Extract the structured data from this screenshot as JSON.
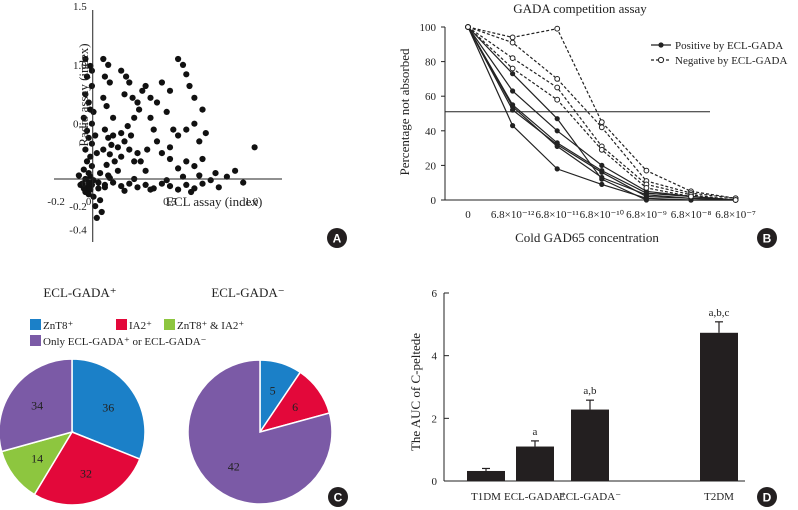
{
  "colors": {
    "blue": "#1b80c8",
    "red": "#e3083a",
    "green": "#8dc63f",
    "purple": "#7b5aa6",
    "dark": "#231f20"
  },
  "chart_data": [
    {
      "panel": "A",
      "type": "scatter",
      "xlabel": "ECL assay (index)",
      "ylabel": "Radio assay (index)",
      "xlim": [
        -0.25,
        1.25
      ],
      "ylim": [
        -0.42,
        1.5
      ],
      "x_ticks": [
        "-0.2",
        "0",
        "0.5",
        "1.0"
      ],
      "x_tick_values": [
        -0.2,
        0,
        0.5,
        1.0
      ],
      "y_ticks": [
        "1.5",
        "1.0",
        "0.5",
        "0",
        "-0.2",
        "-0.4"
      ],
      "y_tick_values": [
        1.5,
        1.0,
        0.5,
        0,
        -0.2,
        -0.4
      ],
      "cutoff_x": 0.025,
      "cutoff_y": 0.03,
      "points": [
        [
          -0.02,
          1.05
        ],
        [
          0.01,
          0.99
        ],
        [
          -0.01,
          0.9
        ],
        [
          0.02,
          0.82
        ],
        [
          -0.02,
          0.75
        ],
        [
          0.0,
          0.68
        ],
        [
          0.01,
          0.62
        ],
        [
          -0.03,
          0.55
        ],
        [
          0.02,
          0.5
        ],
        [
          -0.01,
          0.44
        ],
        [
          0.0,
          0.38
        ],
        [
          0.02,
          0.33
        ],
        [
          -0.02,
          0.28
        ],
        [
          0.01,
          0.22
        ],
        [
          -0.01,
          0.18
        ],
        [
          0.02,
          0.14
        ],
        [
          -0.03,
          0.11
        ],
        [
          0.0,
          0.08
        ],
        [
          0.01,
          0.05
        ],
        [
          -0.02,
          0.03
        ],
        [
          0.03,
          0.02
        ],
        [
          0.0,
          0.0
        ],
        [
          -0.04,
          -0.01
        ],
        [
          0.02,
          -0.02
        ],
        [
          -0.01,
          -0.04
        ],
        [
          0.01,
          -0.06
        ],
        [
          -0.02,
          -0.08
        ],
        [
          0.0,
          -0.1
        ],
        [
          0.03,
          -0.12
        ],
        [
          -0.03,
          -0.05
        ],
        [
          0.06,
          -0.05
        ],
        [
          0.07,
          -0.15
        ],
        [
          0.08,
          -0.25
        ],
        [
          0.05,
          -0.3
        ],
        [
          0.04,
          -0.2
        ],
        [
          0.06,
          0.0
        ],
        [
          0.07,
          0.08
        ],
        [
          -0.06,
          0.06
        ],
        [
          -0.05,
          -0.02
        ],
        [
          0.1,
          -0.04
        ],
        [
          0.03,
          0.6
        ],
        [
          0.02,
          0.95
        ],
        [
          0.04,
          0.4
        ],
        [
          0.05,
          0.25
        ],
        [
          0.09,
          1.05
        ],
        [
          0.12,
          1.0
        ],
        [
          0.1,
          0.9
        ],
        [
          0.13,
          0.85
        ],
        [
          0.09,
          0.72
        ],
        [
          0.11,
          0.65
        ],
        [
          0.15,
          0.55
        ],
        [
          0.1,
          0.45
        ],
        [
          0.12,
          0.38
        ],
        [
          0.14,
          0.32
        ],
        [
          0.09,
          0.28
        ],
        [
          0.13,
          0.24
        ],
        [
          0.16,
          0.18
        ],
        [
          0.11,
          0.15
        ],
        [
          0.18,
          0.1
        ],
        [
          0.12,
          0.06
        ],
        [
          0.2,
          0.95
        ],
        [
          0.23,
          0.9
        ],
        [
          0.25,
          0.85
        ],
        [
          0.22,
          0.75
        ],
        [
          0.27,
          0.72
        ],
        [
          0.3,
          0.68
        ],
        [
          0.33,
          0.78
        ],
        [
          0.35,
          0.82
        ],
        [
          0.31,
          0.62
        ],
        [
          0.28,
          0.55
        ],
        [
          0.24,
          0.48
        ],
        [
          0.2,
          0.42
        ],
        [
          0.26,
          0.4
        ],
        [
          0.22,
          0.35
        ],
        [
          0.18,
          0.3
        ],
        [
          0.25,
          0.28
        ],
        [
          0.3,
          0.25
        ],
        [
          0.2,
          0.22
        ],
        [
          0.28,
          0.18
        ],
        [
          0.15,
          0.4
        ],
        [
          0.38,
          0.72
        ],
        [
          0.42,
          0.68
        ],
        [
          0.45,
          0.85
        ],
        [
          0.5,
          0.78
        ],
        [
          0.55,
          1.05
        ],
        [
          0.58,
          1.0
        ],
        [
          0.6,
          0.92
        ],
        [
          0.62,
          0.82
        ],
        [
          0.65,
          0.72
        ],
        [
          0.48,
          0.6
        ],
        [
          0.52,
          0.45
        ],
        [
          0.55,
          0.4
        ],
        [
          0.6,
          0.45
        ],
        [
          0.65,
          0.5
        ],
        [
          0.7,
          0.62
        ],
        [
          0.4,
          0.45
        ],
        [
          0.42,
          0.35
        ],
        [
          0.36,
          0.28
        ],
        [
          0.45,
          0.25
        ],
        [
          0.5,
          0.2
        ],
        [
          0.55,
          0.12
        ],
        [
          0.6,
          0.18
        ],
        [
          0.65,
          0.14
        ],
        [
          0.7,
          0.2
        ],
        [
          0.35,
          0.1
        ],
        [
          0.32,
          0.18
        ],
        [
          0.68,
          0.35
        ],
        [
          0.72,
          0.42
        ],
        [
          0.5,
          0.3
        ],
        [
          0.38,
          0.55
        ],
        [
          0.1,
          -0.02
        ],
        [
          0.15,
          0.0
        ],
        [
          0.2,
          -0.03
        ],
        [
          0.25,
          -0.01
        ],
        [
          0.3,
          -0.04
        ],
        [
          0.35,
          -0.02
        ],
        [
          0.4,
          -0.05
        ],
        [
          0.45,
          -0.01
        ],
        [
          0.5,
          -0.03
        ],
        [
          0.55,
          -0.06
        ],
        [
          0.6,
          -0.02
        ],
        [
          0.65,
          -0.05
        ],
        [
          0.7,
          -0.01
        ],
        [
          0.75,
          0.02
        ],
        [
          0.8,
          -0.04
        ],
        [
          0.85,
          0.05
        ],
        [
          0.9,
          0.1
        ],
        [
          0.13,
          0.04
        ],
        [
          0.28,
          0.03
        ],
        [
          0.48,
          0.02
        ],
        [
          0.58,
          0.05
        ],
        [
          0.68,
          0.06
        ],
        [
          0.78,
          0.08
        ],
        [
          0.95,
          0.0
        ],
        [
          1.02,
          0.3
        ],
        [
          0.22,
          -0.07
        ],
        [
          0.38,
          -0.06
        ],
        [
          0.63,
          -0.08
        ]
      ]
    },
    {
      "panel": "B",
      "type": "line",
      "title": "GADA competition assay",
      "xlabel": "Cold GAD65 concentration",
      "ylabel": "Percentage not absorbed",
      "categories": [
        "0",
        "6.8×10⁻¹²",
        "6.8×10⁻¹¹",
        "6.8×10⁻¹⁰",
        "6.8×10⁻⁹",
        "6.8×10⁻⁸",
        "6.8×10⁻⁷"
      ],
      "ylim": [
        0,
        100
      ],
      "y_ticks": [
        "0",
        "20",
        "40",
        "60",
        "80",
        "100"
      ],
      "y_tick_values": [
        0,
        20,
        40,
        60,
        80,
        100
      ],
      "threshold": 51,
      "legend": [
        "Positive by ECL-GADA",
        "Negative by ECL-GADA"
      ],
      "series": [
        {
          "name": "Positive by ECL-GADA",
          "style": "solid",
          "values": [
            100,
            43,
            18,
            9,
            1,
            0,
            0
          ]
        },
        {
          "name": "Positive by ECL-GADA",
          "style": "solid",
          "values": [
            100,
            52,
            32,
            16,
            2,
            1,
            0
          ]
        },
        {
          "name": "Positive by ECL-GADA",
          "style": "solid",
          "values": [
            100,
            55,
            33,
            17,
            4,
            2,
            0
          ]
        },
        {
          "name": "Positive by ECL-GADA",
          "style": "solid",
          "values": [
            100,
            63,
            40,
            20,
            5,
            2,
            0
          ]
        },
        {
          "name": "Positive by ECL-GADA",
          "style": "solid",
          "values": [
            100,
            73,
            47,
            12,
            0,
            0,
            0
          ]
        },
        {
          "name": "Positive by ECL-GADA",
          "style": "solid",
          "values": [
            100,
            54,
            31,
            13,
            3,
            1,
            0
          ]
        },
        {
          "name": "Negative by ECL-GADA",
          "style": "dashed",
          "values": [
            100,
            94,
            99,
            45,
            17,
            5,
            1
          ]
        },
        {
          "name": "Negative by ECL-GADA",
          "style": "dashed",
          "values": [
            100,
            91,
            70,
            42,
            11,
            4,
            1
          ]
        },
        {
          "name": "Negative by ECL-GADA",
          "style": "dashed",
          "values": [
            100,
            82,
            65,
            31,
            9,
            3,
            0
          ]
        },
        {
          "name": "Negative by ECL-GADA",
          "style": "dashed",
          "values": [
            100,
            76,
            58,
            29,
            7,
            2,
            0
          ]
        }
      ]
    },
    {
      "panel": "C",
      "type": "pie",
      "legend": [
        "ZnT8⁺",
        "IA2⁺",
        "ZnT8⁺ & IA2⁺",
        "Only ECL-GADA⁺ or ECL-GADA⁻"
      ],
      "pies": [
        {
          "title": "ECL-GADA⁺",
          "slices": [
            {
              "label": "36",
              "value": 36,
              "category": "ZnT8⁺"
            },
            {
              "label": "32",
              "value": 32,
              "category": "IA2⁺"
            },
            {
              "label": "14",
              "value": 14,
              "category": "ZnT8⁺ & IA2⁺"
            },
            {
              "label": "34",
              "value": 34,
              "category": "Only ECL-GADA⁺ or ECL-GADA⁻"
            }
          ]
        },
        {
          "title": "ECL-GADA⁻",
          "slices": [
            {
              "label": "5",
              "value": 5,
              "category": "ZnT8⁺"
            },
            {
              "label": "6",
              "value": 6,
              "category": "IA2⁺"
            },
            {
              "label": "42",
              "value": 42,
              "category": "Only ECL-GADA⁺ or ECL-GADA⁻"
            }
          ]
        }
      ]
    },
    {
      "panel": "D",
      "type": "bar",
      "ylabel": "The AUC of C-peltede",
      "categories": [
        "T1DM",
        "ECL-GADA⁺",
        "ECL-GADA⁻",
        "T2DM"
      ],
      "values": [
        0.32,
        1.1,
        2.28,
        4.73
      ],
      "errors": [
        0.08,
        0.18,
        0.3,
        0.35
      ],
      "annotations": [
        "",
        "a",
        "a,b",
        "a,b,c"
      ],
      "ylim": [
        0,
        6
      ],
      "y_ticks": [
        "0",
        "2",
        "4",
        "6"
      ],
      "y_tick_values": [
        0,
        2,
        4,
        6
      ]
    }
  ],
  "panel_badges": [
    "A",
    "B",
    "C",
    "D"
  ]
}
